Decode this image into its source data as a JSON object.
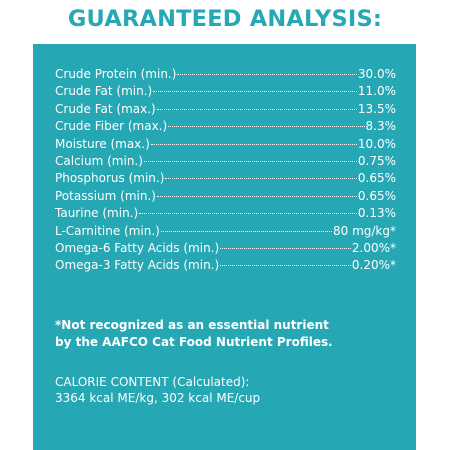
{
  "title": "GUARANTEED ANALYSIS:",
  "colors": {
    "panel": "#25a7b4",
    "title": "#26a8b5",
    "text": "#ffffff"
  },
  "analysis": [
    {
      "label": "Crude Protein (min.)",
      "value": "30.0%"
    },
    {
      "label": "Crude Fat (min.)",
      "value": "11.0%"
    },
    {
      "label": "Crude Fat (max.)",
      "value": "13.5%"
    },
    {
      "label": "Crude Fiber (max.)",
      "value": "8.3%"
    },
    {
      "label": "Moisture (max.)",
      "value": "10.0%"
    },
    {
      "label": "Calcium (min.)",
      "value": "0.75%"
    },
    {
      "label": "Phosphorus (min.)",
      "value": "0.65%"
    },
    {
      "label": "Potassium (min.)",
      "value": "0.65%"
    },
    {
      "label": "Taurine (min.)",
      "value": "0.13%"
    },
    {
      "label": "L-Carnitine (min.)",
      "value": "80 mg/kg*"
    },
    {
      "label": "Omega-6 Fatty Acids (min.)",
      "value": "2.00%*"
    },
    {
      "label": "Omega-3 Fatty Acids (min.)",
      "value": "0.20%*"
    }
  ],
  "footnote": {
    "line1": "*Not recognized as an essential nutrient",
    "line2": "by the AAFCO Cat Food Nutrient Profiles."
  },
  "calorie": {
    "heading": "CALORIE CONTENT (Calculated):",
    "value": "3364 kcal ME/kg, 302 kcal ME/cup"
  }
}
